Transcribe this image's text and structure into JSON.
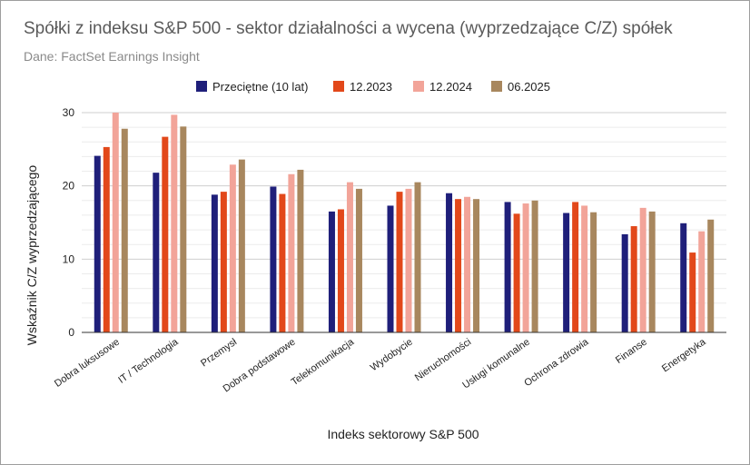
{
  "chart_data": {
    "type": "bar",
    "title": "Spółki z indeksu S&P 500 - sektor działalności a wycena (wyprzedzające C/Z) spółek",
    "subtitle": "Dane: FactSet Earnings Insight",
    "xlabel": "Indeks sektorowy S&P 500",
    "ylabel": "Wskaźnik C/Z wyprzedzającego",
    "ylim": [
      0,
      30
    ],
    "yticks": [
      0,
      10,
      20,
      30
    ],
    "grid": true,
    "legend_position": "top",
    "categories": [
      "Dobra luksusowe",
      "IT / Technologia",
      "Przemysł",
      "Dobra podstawowe",
      "Telekomunikacja",
      "Wydobycie",
      "Nieruchomości",
      "Usługi komunalne",
      "Ochrona zdrowia",
      "Finanse",
      "Energetyka"
    ],
    "series": [
      {
        "name": "Przeciętne (10 lat)",
        "color": "#1f1f7a",
        "values": [
          24.1,
          21.8,
          18.8,
          19.9,
          16.5,
          17.3,
          19.0,
          17.8,
          16.3,
          13.4,
          14.9
        ]
      },
      {
        "name": "12.2023",
        "color": "#e2481a",
        "values": [
          25.3,
          26.7,
          19.2,
          18.9,
          16.8,
          19.2,
          18.2,
          16.2,
          17.8,
          14.5,
          10.9
        ]
      },
      {
        "name": "12.2024",
        "color": "#f2a499",
        "values": [
          30.0,
          29.7,
          22.9,
          21.6,
          20.5,
          19.6,
          18.5,
          17.6,
          17.3,
          17.0,
          13.8
        ]
      },
      {
        "name": "06.2025",
        "color": "#a8875e",
        "values": [
          27.8,
          28.1,
          23.6,
          22.2,
          19.6,
          20.5,
          18.2,
          18.0,
          16.4,
          16.5,
          15.4
        ]
      }
    ]
  }
}
